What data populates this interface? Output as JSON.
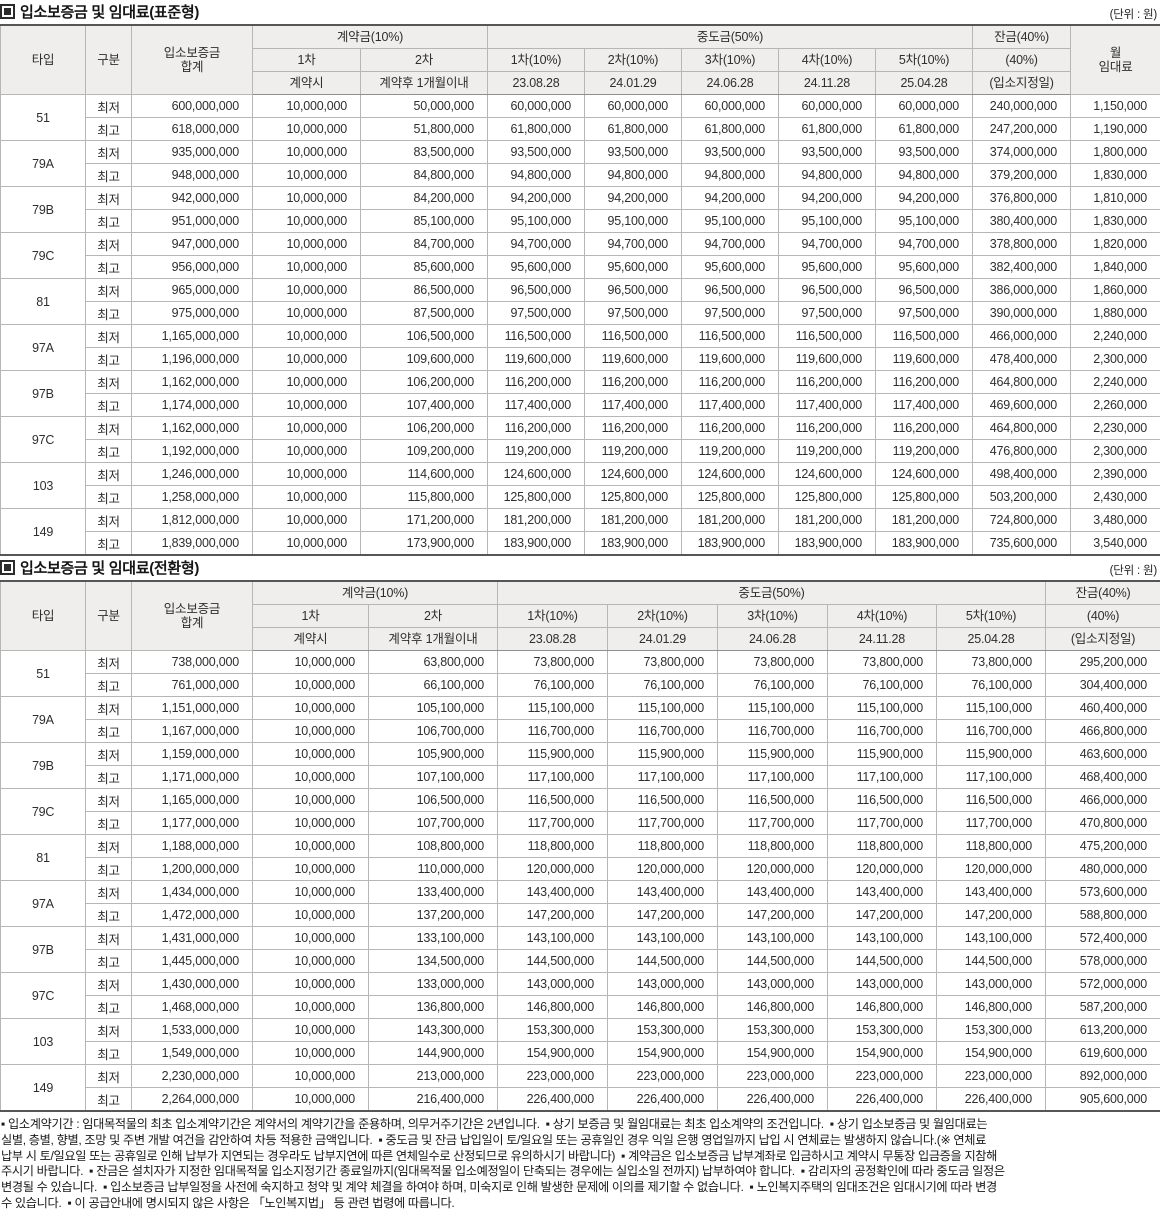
{
  "unit_label": "(단위 : 원)",
  "header": {
    "type": "타입",
    "grade": "구분",
    "total": "입소보증금\n합계",
    "contract_group": "계약금(10%)",
    "contract_1": "1차",
    "contract_2": "2차",
    "contract_1_sub": "계약시",
    "contract_2_sub": "계약후 1개월이내",
    "interim_group": "중도금(50%)",
    "interim_cols": [
      "1차(10%)",
      "2차(10%)",
      "3차(10%)",
      "4차(10%)",
      "5차(10%)"
    ],
    "interim_dates": [
      "23.08.28",
      "24.01.29",
      "24.06.28",
      "24.11.28",
      "25.04.28"
    ],
    "balance_group": "잔금(40%)",
    "balance_mid": "(40%)",
    "balance_sub": "(입소지정일)",
    "rent": "월\n임대료"
  },
  "tables": [
    {
      "title": "입소보증금 및 임대료(표준형)",
      "show_rent": true,
      "groups": [
        {
          "type": "51",
          "rows": [
            {
              "grade": "최저",
              "values": [
                "600,000,000",
                "10,000,000",
                "50,000,000",
                "60,000,000",
                "60,000,000",
                "60,000,000",
                "60,000,000",
                "60,000,000",
                "240,000,000",
                "1,150,000"
              ]
            },
            {
              "grade": "최고",
              "values": [
                "618,000,000",
                "10,000,000",
                "51,800,000",
                "61,800,000",
                "61,800,000",
                "61,800,000",
                "61,800,000",
                "61,800,000",
                "247,200,000",
                "1,190,000"
              ]
            }
          ]
        },
        {
          "type": "79A",
          "rows": [
            {
              "grade": "최저",
              "values": [
                "935,000,000",
                "10,000,000",
                "83,500,000",
                "93,500,000",
                "93,500,000",
                "93,500,000",
                "93,500,000",
                "93,500,000",
                "374,000,000",
                "1,800,000"
              ]
            },
            {
              "grade": "최고",
              "values": [
                "948,000,000",
                "10,000,000",
                "84,800,000",
                "94,800,000",
                "94,800,000",
                "94,800,000",
                "94,800,000",
                "94,800,000",
                "379,200,000",
                "1,830,000"
              ]
            }
          ]
        },
        {
          "type": "79B",
          "rows": [
            {
              "grade": "최저",
              "values": [
                "942,000,000",
                "10,000,000",
                "84,200,000",
                "94,200,000",
                "94,200,000",
                "94,200,000",
                "94,200,000",
                "94,200,000",
                "376,800,000",
                "1,810,000"
              ]
            },
            {
              "grade": "최고",
              "values": [
                "951,000,000",
                "10,000,000",
                "85,100,000",
                "95,100,000",
                "95,100,000",
                "95,100,000",
                "95,100,000",
                "95,100,000",
                "380,400,000",
                "1,830,000"
              ]
            }
          ]
        },
        {
          "type": "79C",
          "rows": [
            {
              "grade": "최저",
              "values": [
                "947,000,000",
                "10,000,000",
                "84,700,000",
                "94,700,000",
                "94,700,000",
                "94,700,000",
                "94,700,000",
                "94,700,000",
                "378,800,000",
                "1,820,000"
              ]
            },
            {
              "grade": "최고",
              "values": [
                "956,000,000",
                "10,000,000",
                "85,600,000",
                "95,600,000",
                "95,600,000",
                "95,600,000",
                "95,600,000",
                "95,600,000",
                "382,400,000",
                "1,840,000"
              ]
            }
          ]
        },
        {
          "type": "81",
          "rows": [
            {
              "grade": "최저",
              "values": [
                "965,000,000",
                "10,000,000",
                "86,500,000",
                "96,500,000",
                "96,500,000",
                "96,500,000",
                "96,500,000",
                "96,500,000",
                "386,000,000",
                "1,860,000"
              ]
            },
            {
              "grade": "최고",
              "values": [
                "975,000,000",
                "10,000,000",
                "87,500,000",
                "97,500,000",
                "97,500,000",
                "97,500,000",
                "97,500,000",
                "97,500,000",
                "390,000,000",
                "1,880,000"
              ]
            }
          ]
        },
        {
          "type": "97A",
          "rows": [
            {
              "grade": "최저",
              "values": [
                "1,165,000,000",
                "10,000,000",
                "106,500,000",
                "116,500,000",
                "116,500,000",
                "116,500,000",
                "116,500,000",
                "116,500,000",
                "466,000,000",
                "2,240,000"
              ]
            },
            {
              "grade": "최고",
              "values": [
                "1,196,000,000",
                "10,000,000",
                "109,600,000",
                "119,600,000",
                "119,600,000",
                "119,600,000",
                "119,600,000",
                "119,600,000",
                "478,400,000",
                "2,300,000"
              ]
            }
          ]
        },
        {
          "type": "97B",
          "rows": [
            {
              "grade": "최저",
              "values": [
                "1,162,000,000",
                "10,000,000",
                "106,200,000",
                "116,200,000",
                "116,200,000",
                "116,200,000",
                "116,200,000",
                "116,200,000",
                "464,800,000",
                "2,240,000"
              ]
            },
            {
              "grade": "최고",
              "values": [
                "1,174,000,000",
                "10,000,000",
                "107,400,000",
                "117,400,000",
                "117,400,000",
                "117,400,000",
                "117,400,000",
                "117,400,000",
                "469,600,000",
                "2,260,000"
              ]
            }
          ]
        },
        {
          "type": "97C",
          "rows": [
            {
              "grade": "최저",
              "values": [
                "1,162,000,000",
                "10,000,000",
                "106,200,000",
                "116,200,000",
                "116,200,000",
                "116,200,000",
                "116,200,000",
                "116,200,000",
                "464,800,000",
                "2,230,000"
              ]
            },
            {
              "grade": "최고",
              "values": [
                "1,192,000,000",
                "10,000,000",
                "109,200,000",
                "119,200,000",
                "119,200,000",
                "119,200,000",
                "119,200,000",
                "119,200,000",
                "476,800,000",
                "2,300,000"
              ]
            }
          ]
        },
        {
          "type": "103",
          "rows": [
            {
              "grade": "최저",
              "values": [
                "1,246,000,000",
                "10,000,000",
                "114,600,000",
                "124,600,000",
                "124,600,000",
                "124,600,000",
                "124,600,000",
                "124,600,000",
                "498,400,000",
                "2,390,000"
              ]
            },
            {
              "grade": "최고",
              "values": [
                "1,258,000,000",
                "10,000,000",
                "115,800,000",
                "125,800,000",
                "125,800,000",
                "125,800,000",
                "125,800,000",
                "125,800,000",
                "503,200,000",
                "2,430,000"
              ]
            }
          ]
        },
        {
          "type": "149",
          "rows": [
            {
              "grade": "최저",
              "values": [
                "1,812,000,000",
                "10,000,000",
                "171,200,000",
                "181,200,000",
                "181,200,000",
                "181,200,000",
                "181,200,000",
                "181,200,000",
                "724,800,000",
                "3,480,000"
              ]
            },
            {
              "grade": "최고",
              "values": [
                "1,839,000,000",
                "10,000,000",
                "173,900,000",
                "183,900,000",
                "183,900,000",
                "183,900,000",
                "183,900,000",
                "183,900,000",
                "735,600,000",
                "3,540,000"
              ]
            }
          ]
        }
      ]
    },
    {
      "title": "입소보증금 및 임대료(전환형)",
      "show_rent": false,
      "groups": [
        {
          "type": "51",
          "rows": [
            {
              "grade": "최저",
              "values": [
                "738,000,000",
                "10,000,000",
                "63,800,000",
                "73,800,000",
                "73,800,000",
                "73,800,000",
                "73,800,000",
                "73,800,000",
                "295,200,000"
              ]
            },
            {
              "grade": "최고",
              "values": [
                "761,000,000",
                "10,000,000",
                "66,100,000",
                "76,100,000",
                "76,100,000",
                "76,100,000",
                "76,100,000",
                "76,100,000",
                "304,400,000"
              ]
            }
          ]
        },
        {
          "type": "79A",
          "rows": [
            {
              "grade": "최저",
              "values": [
                "1,151,000,000",
                "10,000,000",
                "105,100,000",
                "115,100,000",
                "115,100,000",
                "115,100,000",
                "115,100,000",
                "115,100,000",
                "460,400,000"
              ]
            },
            {
              "grade": "최고",
              "values": [
                "1,167,000,000",
                "10,000,000",
                "106,700,000",
                "116,700,000",
                "116,700,000",
                "116,700,000",
                "116,700,000",
                "116,700,000",
                "466,800,000"
              ]
            }
          ]
        },
        {
          "type": "79B",
          "rows": [
            {
              "grade": "최저",
              "values": [
                "1,159,000,000",
                "10,000,000",
                "105,900,000",
                "115,900,000",
                "115,900,000",
                "115,900,000",
                "115,900,000",
                "115,900,000",
                "463,600,000"
              ]
            },
            {
              "grade": "최고",
              "values": [
                "1,171,000,000",
                "10,000,000",
                "107,100,000",
                "117,100,000",
                "117,100,000",
                "117,100,000",
                "117,100,000",
                "117,100,000",
                "468,400,000"
              ]
            }
          ]
        },
        {
          "type": "79C",
          "rows": [
            {
              "grade": "최저",
              "values": [
                "1,165,000,000",
                "10,000,000",
                "106,500,000",
                "116,500,000",
                "116,500,000",
                "116,500,000",
                "116,500,000",
                "116,500,000",
                "466,000,000"
              ]
            },
            {
              "grade": "최고",
              "values": [
                "1,177,000,000",
                "10,000,000",
                "107,700,000",
                "117,700,000",
                "117,700,000",
                "117,700,000",
                "117,700,000",
                "117,700,000",
                "470,800,000"
              ]
            }
          ]
        },
        {
          "type": "81",
          "rows": [
            {
              "grade": "최저",
              "values": [
                "1,188,000,000",
                "10,000,000",
                "108,800,000",
                "118,800,000",
                "118,800,000",
                "118,800,000",
                "118,800,000",
                "118,800,000",
                "475,200,000"
              ]
            },
            {
              "grade": "최고",
              "values": [
                "1,200,000,000",
                "10,000,000",
                "110,000,000",
                "120,000,000",
                "120,000,000",
                "120,000,000",
                "120,000,000",
                "120,000,000",
                "480,000,000"
              ]
            }
          ]
        },
        {
          "type": "97A",
          "rows": [
            {
              "grade": "최저",
              "values": [
                "1,434,000,000",
                "10,000,000",
                "133,400,000",
                "143,400,000",
                "143,400,000",
                "143,400,000",
                "143,400,000",
                "143,400,000",
                "573,600,000"
              ]
            },
            {
              "grade": "최고",
              "values": [
                "1,472,000,000",
                "10,000,000",
                "137,200,000",
                "147,200,000",
                "147,200,000",
                "147,200,000",
                "147,200,000",
                "147,200,000",
                "588,800,000"
              ]
            }
          ]
        },
        {
          "type": "97B",
          "rows": [
            {
              "grade": "최저",
              "values": [
                "1,431,000,000",
                "10,000,000",
                "133,100,000",
                "143,100,000",
                "143,100,000",
                "143,100,000",
                "143,100,000",
                "143,100,000",
                "572,400,000"
              ]
            },
            {
              "grade": "최고",
              "values": [
                "1,445,000,000",
                "10,000,000",
                "134,500,000",
                "144,500,000",
                "144,500,000",
                "144,500,000",
                "144,500,000",
                "144,500,000",
                "578,000,000"
              ]
            }
          ]
        },
        {
          "type": "97C",
          "rows": [
            {
              "grade": "최저",
              "values": [
                "1,430,000,000",
                "10,000,000",
                "133,000,000",
                "143,000,000",
                "143,000,000",
                "143,000,000",
                "143,000,000",
                "143,000,000",
                "572,000,000"
              ]
            },
            {
              "grade": "최고",
              "values": [
                "1,468,000,000",
                "10,000,000",
                "136,800,000",
                "146,800,000",
                "146,800,000",
                "146,800,000",
                "146,800,000",
                "146,800,000",
                "587,200,000"
              ]
            }
          ]
        },
        {
          "type": "103",
          "rows": [
            {
              "grade": "최저",
              "values": [
                "1,533,000,000",
                "10,000,000",
                "143,300,000",
                "153,300,000",
                "153,300,000",
                "153,300,000",
                "153,300,000",
                "153,300,000",
                "613,200,000"
              ]
            },
            {
              "grade": "최고",
              "values": [
                "1,549,000,000",
                "10,000,000",
                "144,900,000",
                "154,900,000",
                "154,900,000",
                "154,900,000",
                "154,900,000",
                "154,900,000",
                "619,600,000"
              ]
            }
          ]
        },
        {
          "type": "149",
          "rows": [
            {
              "grade": "최저",
              "values": [
                "2,230,000,000",
                "10,000,000",
                "213,000,000",
                "223,000,000",
                "223,000,000",
                "223,000,000",
                "223,000,000",
                "223,000,000",
                "892,000,000"
              ]
            },
            {
              "grade": "최고",
              "values": [
                "2,264,000,000",
                "10,000,000",
                "216,400,000",
                "226,400,000",
                "226,400,000",
                "226,400,000",
                "226,400,000",
                "226,400,000",
                "905,600,000"
              ]
            }
          ]
        }
      ]
    }
  ],
  "footnote_lines": [
    "▪ 입소계약기간 : 임대목적물의 최초 입소계약기간은 계약서의 계약기간을 준용하며, 의무거주기간은 2년입니다.  ▪ 상기 보증금 및 월임대료는 최초 입소계약의 조건입니다.  ▪ 상기 입소보증금 및 월임대료는",
    "실별, 층별, 향별, 조망 및 주변 개발 여건을 감안하여 차등 적용한 금액입니다.  ▪ 중도금 및 잔금 납입일이 토/일요일 또는 공휴일인 경우 익일 은행 영업일까지 납입 시 연체료는 발생하지 않습니다.(※ 연체료",
    "납부 시 토/일요일 또는 공휴일로 인해 납부가 지연되는 경우라도 납부지연에 따른 연체일수로 산정되므로 유의하시기 바랍니다)  ▪ 계약금은 입소보증금 납부계좌로 입금하시고 계약시 무통장 입금증을 지참해",
    "주시기 바랍니다.  ▪ 잔금은 설치자가 지정한 임대목적물 입소지정기간 종료일까지(임대목적물 입소예정일이 단축되는 경우에는 실입소일 전까지) 납부하여야 합니다.  ▪ 감리자의 공정확인에 따라 중도금 일정은",
    "변경될 수 있습니다.  ▪ 입소보증금 납부일정을 사전에 숙지하고 청약 및 계약 체결을 하여야 하며, 미숙지로 인해 발생한 문제에 이의를 제기할 수 없습니다.  ▪ 노인복지주택의 임대조건은 임대시기에 따라 변경",
    "수 있습니다.  ▪ 이 공급안내에 명시되지 않은 사항은 「노인복지법」 등 관련 법령에 따릅니다."
  ]
}
